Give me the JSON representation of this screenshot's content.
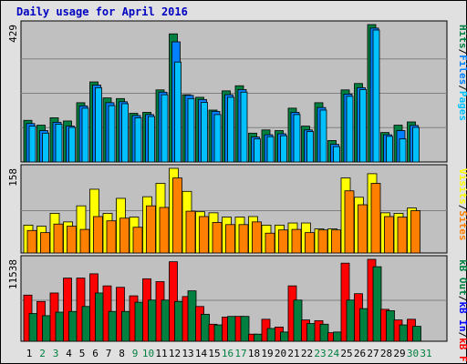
{
  "chart_data": [
    {
      "type": "bar",
      "title": "Daily usage for April 2016",
      "ymax_label": "429",
      "ylabel_parts": [
        "Pages",
        "Files",
        "Hits"
      ],
      "colors": {
        "hits": "#008040",
        "files": "#0080ff",
        "pages": "#00c0ff"
      },
      "categories": [
        "1",
        "2",
        "3",
        "4",
        "5",
        "6",
        "7",
        "8",
        "9",
        "10",
        "11",
        "12",
        "13",
        "14",
        "15",
        "16",
        "17",
        "18",
        "19",
        "20",
        "21",
        "22",
        "23",
        "24",
        "25",
        "26",
        "27",
        "28",
        "29",
        "30",
        "31"
      ],
      "series": [
        {
          "name": "Hits",
          "values": [
            130,
            115,
            138,
            128,
            185,
            250,
            200,
            198,
            152,
            155,
            225,
            400,
            210,
            202,
            162,
            222,
            238,
            90,
            100,
            98,
            168,
            112,
            185,
            67,
            225,
            245,
            430,
            92,
            115,
            125,
            0
          ]
        },
        {
          "name": "Files",
          "values": [
            120,
            98,
            124,
            112,
            175,
            240,
            185,
            188,
            145,
            148,
            218,
            375,
            208,
            195,
            158,
            210,
            226,
            78,
            85,
            88,
            155,
            100,
            170,
            55,
            212,
            232,
            418,
            85,
            98,
            114,
            0
          ]
        },
        {
          "name": "Pages",
          "values": [
            112,
            90,
            118,
            108,
            168,
            232,
            176,
            182,
            138,
            142,
            210,
            312,
            198,
            186,
            148,
            202,
            218,
            72,
            79,
            82,
            148,
            95,
            162,
            48,
            205,
            226,
            412,
            80,
            72,
            108,
            0
          ]
        }
      ]
    },
    {
      "type": "bar",
      "ymax_label": "158",
      "ylabel_parts": [
        "Visits",
        "Sites"
      ],
      "colors": {
        "visits": "#ffff00",
        "sites": "#ff8000"
      },
      "categories": [
        "1",
        "2",
        "3",
        "4",
        "5",
        "6",
        "7",
        "8",
        "9",
        "10",
        "11",
        "12",
        "13",
        "14",
        "15",
        "16",
        "17",
        "18",
        "19",
        "20",
        "21",
        "22",
        "23",
        "24",
        "25",
        "26",
        "27",
        "28",
        "29",
        "30",
        "31"
      ],
      "series": [
        {
          "name": "Visits",
          "values": [
            52,
            50,
            74,
            58,
            88,
            119,
            74,
            102,
            67,
            105,
            130,
            158,
            115,
            77,
            75,
            67,
            67,
            68,
            52,
            52,
            56,
            56,
            45,
            45,
            140,
            104,
            148,
            75,
            74,
            84,
            0
          ]
        },
        {
          "name": "Sites",
          "values": [
            42,
            38,
            54,
            50,
            44,
            68,
            60,
            65,
            48,
            88,
            85,
            140,
            78,
            68,
            57,
            53,
            53,
            58,
            37,
            43,
            44,
            38,
            43,
            43,
            116,
            90,
            130,
            68,
            67,
            79,
            0
          ]
        }
      ]
    },
    {
      "type": "bar",
      "ymax_label": "11538",
      "ylabel_parts": [
        "KBytes",
        "KB In",
        "KB Out",
        "kB F"
      ],
      "colors": {
        "kbytes": "#00c000",
        "kb_in": "#0000ff",
        "kb_out": "#008040",
        "kb_f": "#ff0000"
      },
      "categories": [
        "1",
        "2",
        "3",
        "4",
        "5",
        "6",
        "7",
        "8",
        "9",
        "10",
        "11",
        "12",
        "13",
        "14",
        "15",
        "16",
        "17",
        "18",
        "19",
        "20",
        "21",
        "22",
        "23",
        "24",
        "25",
        "26",
        "27",
        "28",
        "29",
        "30",
        "31"
      ],
      "series": [
        {
          "name": "kB F",
          "values": [
            6500,
            5600,
            6800,
            8900,
            8900,
            9500,
            7800,
            7600,
            6400,
            8800,
            8400,
            11200,
            6300,
            4900,
            2400,
            3400,
            3500,
            1000,
            3100,
            2000,
            7800,
            3000,
            2900,
            1200,
            11000,
            6700,
            12000,
            4500,
            3000,
            3100,
            0
          ]
        },
        {
          "name": "KB Out",
          "values": [
            3900,
            3600,
            4100,
            4200,
            4900,
            6800,
            4200,
            4200,
            5500,
            5800,
            5800,
            5600,
            7100,
            3800,
            2300,
            3500,
            3500,
            1000,
            1800,
            1300,
            5800,
            2500,
            2400,
            1300,
            5800,
            4600,
            10500,
            4300,
            2300,
            2100,
            0
          ]
        }
      ]
    }
  ]
}
